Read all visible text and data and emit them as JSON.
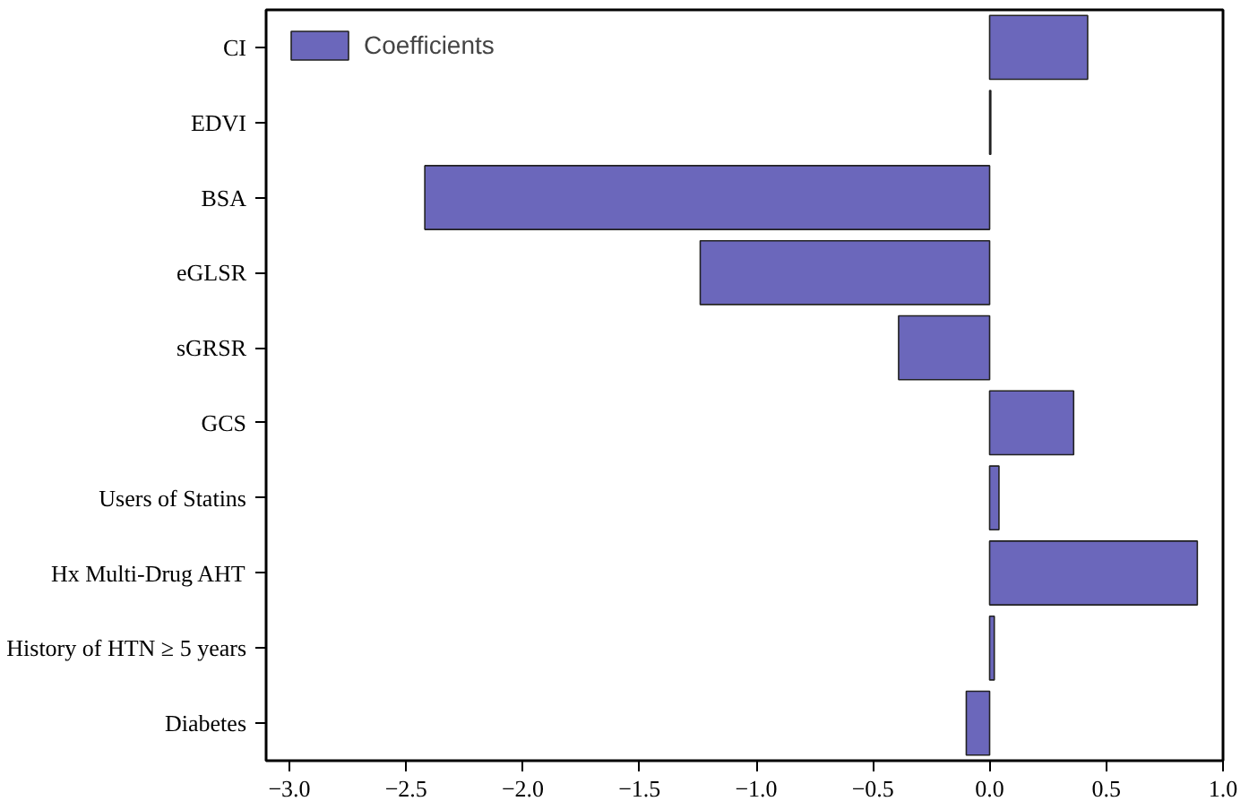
{
  "chart_data": {
    "type": "bar",
    "orientation": "horizontal",
    "categories": [
      "CI",
      "EDVI",
      "BSA",
      "eGLSR",
      "sGRSR",
      "GCS",
      "Users of Statins",
      "Hx Multi-Drug AHT",
      "History of HTN ≥ 5 years",
      "Diabetes"
    ],
    "series": [
      {
        "name": "Coefficients",
        "color": "#6b67bb",
        "values": [
          0.42,
          0.005,
          -2.42,
          -1.24,
          -0.39,
          0.36,
          0.04,
          0.89,
          0.02,
          -0.1
        ]
      }
    ],
    "xlim": [
      -3.1,
      1.0
    ],
    "xticks": [
      {
        "value": -3.0,
        "label": "−3.0"
      },
      {
        "value": -2.5,
        "label": "−2.5"
      },
      {
        "value": -2.0,
        "label": "−2.0"
      },
      {
        "value": -1.5,
        "label": "−1.5"
      },
      {
        "value": -1.0,
        "label": "−1.0"
      },
      {
        "value": -0.5,
        "label": "−0.5"
      },
      {
        "value": 0.0,
        "label": "0.0"
      },
      {
        "value": 0.5,
        "label": "0.5"
      },
      {
        "value": 1.0,
        "label": "1.0"
      }
    ],
    "grid": false,
    "legend": "top left"
  }
}
